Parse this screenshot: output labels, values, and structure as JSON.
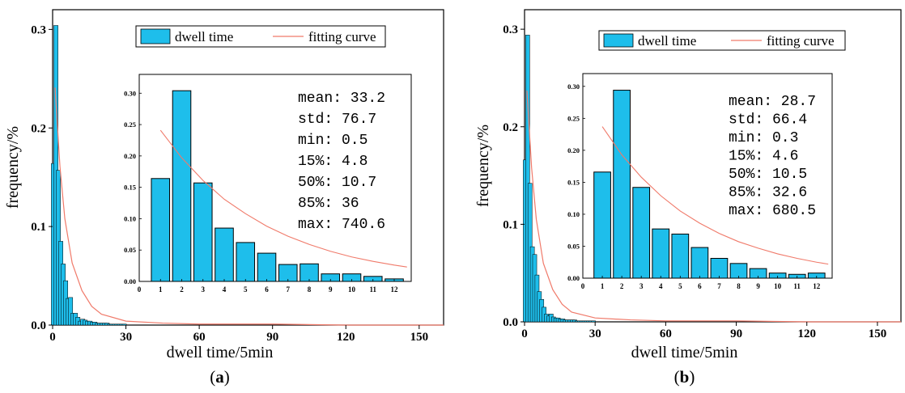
{
  "panel_label_prefix": "(",
  "panel_label_suffix": ")",
  "colors": {
    "bar": "#1ebeeb",
    "curve": "#f07a6a",
    "axis": "#000000"
  },
  "chart_data": [
    {
      "panel": "a",
      "type": "bar",
      "xlabel": "dwell time/5min",
      "ylabel": "frequency/%",
      "xlim": [
        0,
        160
      ],
      "ylim": [
        0,
        0.32
      ],
      "xticks": [
        0,
        30,
        60,
        90,
        120,
        150
      ],
      "yticks": [
        0.0,
        0.1,
        0.2,
        0.3
      ],
      "ytick_labels": [
        "0.0",
        "0.1",
        "0.2",
        "0.3"
      ],
      "legend": {
        "bar": "dwell time",
        "line": "fitting curve",
        "position": "top-right"
      },
      "series": [
        {
          "name": "dwell time",
          "type": "bar",
          "x": [
            1,
            2,
            3,
            4,
            5,
            6,
            7,
            8,
            9,
            10,
            11,
            12,
            13,
            14,
            15,
            16,
            17,
            18,
            19,
            20,
            21,
            22,
            23,
            24,
            25,
            26,
            27,
            28,
            29,
            30
          ],
          "values": [
            0.164,
            0.304,
            0.157,
            0.085,
            0.062,
            0.045,
            0.027,
            0.028,
            0.012,
            0.012,
            0.008,
            0.004,
            0.006,
            0.005,
            0.004,
            0.004,
            0.003,
            0.003,
            0.002,
            0.002,
            0.002,
            0.002,
            0.002,
            0.001,
            0.001,
            0.001,
            0.001,
            0.001,
            0.001,
            0.001
          ]
        },
        {
          "name": "fitting curve",
          "type": "line",
          "x": [
            1,
            3,
            5,
            8,
            12,
            16,
            20,
            30,
            45,
            60,
            90,
            120,
            150,
            160
          ],
          "values": [
            0.241,
            0.161,
            0.108,
            0.063,
            0.035,
            0.019,
            0.011,
            0.004,
            0.002,
            0.001,
            0.001,
            0.0,
            0.0,
            0.0
          ]
        }
      ],
      "inset": {
        "xlim": [
          0,
          12.8
        ],
        "ylim": [
          0,
          0.33
        ],
        "xticks": [
          0,
          1,
          2,
          3,
          4,
          5,
          6,
          7,
          8,
          9,
          10,
          11,
          12
        ],
        "yticks": [
          0.0,
          0.05,
          0.1,
          0.15,
          0.2,
          0.25,
          0.3
        ],
        "ytick_labels": [
          "0.00",
          "0.05",
          "0.10",
          "0.15",
          "0.20",
          "0.25",
          "0.30"
        ],
        "categories": [
          1,
          2,
          3,
          4,
          5,
          6,
          7,
          8,
          9,
          10,
          11,
          12
        ],
        "values": [
          0.164,
          0.304,
          0.157,
          0.085,
          0.062,
          0.045,
          0.027,
          0.028,
          0.012,
          0.012,
          0.008,
          0.004
        ],
        "curve": {
          "x": [
            1,
            2,
            3,
            4,
            5,
            6,
            7,
            8,
            9,
            10,
            11,
            12,
            12.6
          ],
          "values": [
            0.241,
            0.197,
            0.161,
            0.131,
            0.108,
            0.088,
            0.072,
            0.059,
            0.048,
            0.039,
            0.032,
            0.026,
            0.023
          ]
        },
        "stats": [
          "mean: 33.2",
          "std: 76.7",
          "min: 0.5",
          "15%: 4.8",
          "50%: 10.7",
          "85%: 36",
          "max: 740.6"
        ]
      }
    },
    {
      "panel": "b",
      "type": "bar",
      "xlabel": "dwell time/5min",
      "ylabel": "frequency/%",
      "xlim": [
        0,
        160
      ],
      "ylim": [
        0,
        0.32
      ],
      "xticks": [
        0,
        30,
        60,
        90,
        120,
        150
      ],
      "yticks": [
        0.0,
        0.1,
        0.2,
        0.3
      ],
      "ytick_labels": [
        "0.0",
        "0.1",
        "0.2",
        "0.3"
      ],
      "legend": {
        "bar": "dwell time",
        "line": "fitting curve",
        "position": "top-right"
      },
      "series": [
        {
          "name": "dwell time",
          "type": "bar",
          "x": [
            1,
            2,
            3,
            4,
            5,
            6,
            7,
            8,
            9,
            10,
            11,
            12,
            13,
            14,
            15,
            16,
            17,
            18,
            19,
            20,
            21,
            22,
            23,
            24,
            25,
            26,
            27,
            28,
            29,
            30
          ],
          "values": [
            0.166,
            0.294,
            0.142,
            0.077,
            0.069,
            0.048,
            0.031,
            0.023,
            0.015,
            0.008,
            0.006,
            0.008,
            0.005,
            0.004,
            0.004,
            0.003,
            0.003,
            0.002,
            0.002,
            0.002,
            0.002,
            0.002,
            0.001,
            0.001,
            0.001,
            0.001,
            0.001,
            0.001,
            0.001,
            0.001
          ]
        },
        {
          "name": "fitting curve",
          "type": "line",
          "x": [
            1,
            3,
            5,
            8,
            12,
            16,
            20,
            30,
            45,
            60,
            90,
            120,
            150,
            160
          ],
          "values": [
            0.237,
            0.158,
            0.105,
            0.06,
            0.033,
            0.018,
            0.01,
            0.004,
            0.002,
            0.001,
            0.001,
            0.0,
            0.0,
            0.0
          ]
        }
      ],
      "inset": {
        "xlim": [
          0,
          12.8
        ],
        "ylim": [
          0,
          0.32
        ],
        "xticks": [
          0,
          1,
          2,
          3,
          4,
          5,
          6,
          7,
          8,
          9,
          10,
          11,
          12
        ],
        "yticks": [
          0.0,
          0.05,
          0.1,
          0.15,
          0.2,
          0.25,
          0.3
        ],
        "ytick_labels": [
          "0.00",
          "0.05",
          "0.10",
          "0.15",
          "0.20",
          "0.25",
          "0.30"
        ],
        "categories": [
          1,
          2,
          3,
          4,
          5,
          6,
          7,
          8,
          9,
          10,
          11,
          12
        ],
        "values": [
          0.166,
          0.294,
          0.142,
          0.077,
          0.069,
          0.048,
          0.031,
          0.023,
          0.015,
          0.008,
          0.006,
          0.008
        ],
        "curve": {
          "x": [
            1,
            2,
            3,
            4,
            5,
            6,
            7,
            8,
            9,
            10,
            11,
            12,
            12.6
          ],
          "values": [
            0.237,
            0.193,
            0.158,
            0.129,
            0.105,
            0.086,
            0.07,
            0.057,
            0.047,
            0.038,
            0.031,
            0.025,
            0.022
          ]
        },
        "stats": [
          "mean: 28.7",
          "std: 66.4",
          "min: 0.3",
          "15%: 4.6",
          "50%: 10.5",
          "85%: 32.6",
          "max: 680.5"
        ]
      }
    }
  ]
}
